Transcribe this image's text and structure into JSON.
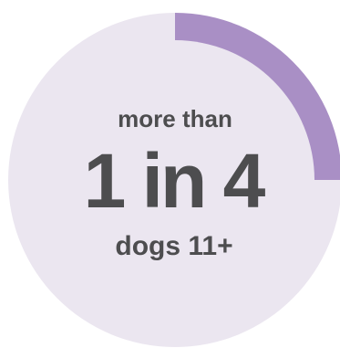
{
  "chart_data": {
    "type": "pie",
    "title": "",
    "slices": [
      {
        "label": "",
        "value": 0.25,
        "color": "#a98fc5"
      },
      {
        "label": "",
        "value": 0.75,
        "color": "#ebe6f0"
      }
    ],
    "text": {
      "line1": "more than",
      "line2": "1 in 4",
      "line3": "dogs 11+"
    },
    "colors": {
      "highlight": "#a98fc5",
      "background_disc": "#ebe6f0",
      "text": "#4d4d4f"
    }
  }
}
